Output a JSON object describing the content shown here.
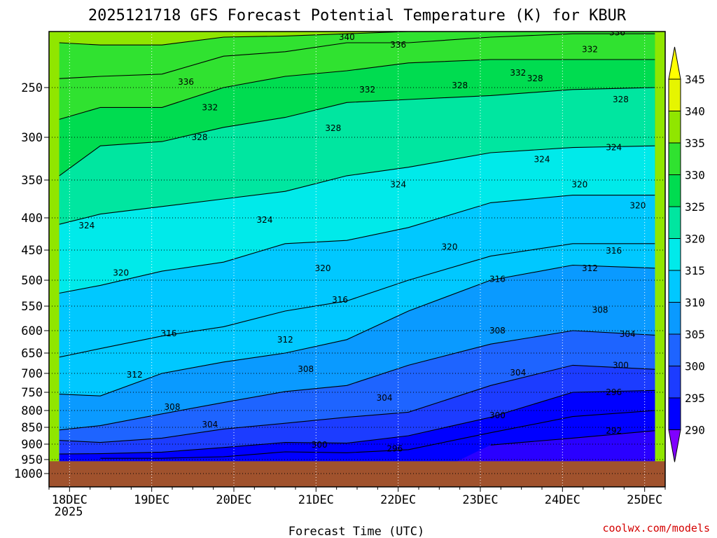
{
  "chart_data": {
    "type": "heatmap",
    "title": "2025121718 GFS Forecast Potential Temperature (K) for KBUR",
    "xlabel": "Forecast Time (UTC)",
    "ylabel": "",
    "y_ticks": [
      "250",
      "300",
      "350",
      "400",
      "450",
      "500",
      "550",
      "600",
      "650",
      "700",
      "750",
      "800",
      "850",
      "900",
      "950",
      "1000"
    ],
    "y_tick_values": [
      250,
      300,
      350,
      400,
      450,
      500,
      550,
      600,
      650,
      700,
      750,
      800,
      850,
      900,
      950,
      1000
    ],
    "ylim": [
      1000,
      200
    ],
    "x_ticks": [
      "18DEC",
      "19DEC",
      "20DEC",
      "21DEC",
      "22DEC",
      "23DEC",
      "24DEC",
      "25DEC"
    ],
    "x_tick_values": [
      0,
      24,
      48,
      72,
      96,
      120,
      144,
      168
    ],
    "x_year_label": "2025",
    "xlim": [
      -6,
      174
    ],
    "grid": true,
    "colorbar": {
      "levels": [
        290,
        295,
        300,
        305,
        310,
        315,
        320,
        325,
        330,
        335,
        340,
        345
      ],
      "labels": [
        "290",
        "295",
        "300",
        "305",
        "310",
        "315",
        "320",
        "325",
        "330",
        "335",
        "340",
        "345"
      ],
      "colors": [
        "#8000ff",
        "#2a00ff",
        "#0000ff",
        "#1c3cff",
        "#1e64ff",
        "#0a9aff",
        "#00c8ff",
        "#00eaea",
        "#00e6a0",
        "#00dc50",
        "#30e230",
        "#90e600",
        "#e6f500",
        "#ffff00"
      ]
    },
    "surface_pressure": 956,
    "surface_color": "#a0522d",
    "series": [
      {
        "level": 292,
        "values": [
          null,
          null,
          null,
          null,
          null,
          null,
          null,
          903,
          882,
          860
        ]
      },
      {
        "level": 296,
        "values": [
          null,
          946,
          946,
          941,
          925,
          928,
          918,
          866,
          818,
          800
        ]
      },
      {
        "level": 300,
        "values": [
          932,
          931,
          926,
          911,
          895,
          897,
          875,
          820,
          750,
          745
        ]
      },
      {
        "level": 304,
        "values": [
          889,
          895,
          882,
          855,
          838,
          820,
          805,
          732,
          680,
          690
        ]
      },
      {
        "level": 308,
        "values": [
          858,
          845,
          810,
          778,
          748,
          732,
          680,
          630,
          600,
          610
        ]
      },
      {
        "level": 312,
        "values": [
          755,
          760,
          700,
          672,
          650,
          620,
          560,
          500,
          475,
          480
        ]
      },
      {
        "level": 316,
        "values": [
          660,
          640,
          612,
          592,
          560,
          540,
          500,
          460,
          440,
          440
        ]
      },
      {
        "level": 320,
        "values": [
          525,
          510,
          485,
          470,
          440,
          435,
          415,
          380,
          370,
          370
        ]
      },
      {
        "level": 324,
        "values": [
          410,
          395,
          385,
          375,
          365,
          345,
          335,
          318,
          312,
          310
        ]
      },
      {
        "level": 328,
        "values": [
          345,
          310,
          305,
          290,
          280,
          265,
          262,
          258,
          252,
          250
        ]
      },
      {
        "level": 332,
        "values": [
          282,
          270,
          270,
          250,
          240,
          235,
          228,
          225,
          225,
          225
        ]
      },
      {
        "level": 336,
        "values": [
          242,
          240,
          238,
          222,
          218,
          210,
          210,
          205,
          202,
          202
        ]
      },
      {
        "level": 340,
        "values": [
          210,
          212,
          212,
          205,
          204,
          202,
          200,
          200,
          200,
          200
        ]
      }
    ],
    "series_x": [
      -3,
      9,
      27,
      45,
      63,
      81,
      99,
      123,
      147,
      171
    ],
    "contour_labels": [
      {
        "text": "340",
        "x": 81,
        "y": 205
      },
      {
        "text": "336",
        "x": 96,
        "y": 212
      },
      {
        "text": "336",
        "x": 34,
        "y": 245
      },
      {
        "text": "336",
        "x": 160,
        "y": 201
      },
      {
        "text": "332",
        "x": 41,
        "y": 270
      },
      {
        "text": "332",
        "x": 87,
        "y": 252
      },
      {
        "text": "332",
        "x": 131,
        "y": 237
      },
      {
        "text": "332",
        "x": 152,
        "y": 216
      },
      {
        "text": "328",
        "x": 38,
        "y": 300
      },
      {
        "text": "328",
        "x": 77,
        "y": 291
      },
      {
        "text": "328",
        "x": 114,
        "y": 248
      },
      {
        "text": "328",
        "x": 136,
        "y": 242
      },
      {
        "text": "328",
        "x": 161,
        "y": 262
      },
      {
        "text": "324",
        "x": 5,
        "y": 412
      },
      {
        "text": "324",
        "x": 57,
        "y": 403
      },
      {
        "text": "324",
        "x": 96,
        "y": 356
      },
      {
        "text": "324",
        "x": 138,
        "y": 326
      },
      {
        "text": "324",
        "x": 159,
        "y": 312
      },
      {
        "text": "320",
        "x": 15,
        "y": 488
      },
      {
        "text": "320",
        "x": 74,
        "y": 480
      },
      {
        "text": "320",
        "x": 111,
        "y": 445
      },
      {
        "text": "320",
        "x": 149,
        "y": 356
      },
      {
        "text": "320",
        "x": 166,
        "y": 384
      },
      {
        "text": "316",
        "x": 29,
        "y": 606
      },
      {
        "text": "316",
        "x": 79,
        "y": 538
      },
      {
        "text": "316",
        "x": 125,
        "y": 498
      },
      {
        "text": "316",
        "x": 159,
        "y": 451
      },
      {
        "text": "312",
        "x": 19,
        "y": 704
      },
      {
        "text": "312",
        "x": 63,
        "y": 620
      },
      {
        "text": "312",
        "x": 152,
        "y": 480
      },
      {
        "text": "308",
        "x": 30,
        "y": 790
      },
      {
        "text": "308",
        "x": 69,
        "y": 690
      },
      {
        "text": "308",
        "x": 125,
        "y": 600
      },
      {
        "text": "308",
        "x": 155,
        "y": 558
      },
      {
        "text": "304",
        "x": 41,
        "y": 842
      },
      {
        "text": "304",
        "x": 92,
        "y": 765
      },
      {
        "text": "304",
        "x": 131,
        "y": 698
      },
      {
        "text": "304",
        "x": 163,
        "y": 608
      },
      {
        "text": "300",
        "x": 73,
        "y": 902
      },
      {
        "text": "300",
        "x": 125,
        "y": 815
      },
      {
        "text": "300",
        "x": 161,
        "y": 680
      },
      {
        "text": "296",
        "x": 95,
        "y": 915
      },
      {
        "text": "296",
        "x": 159,
        "y": 750
      },
      {
        "text": "292",
        "x": 159,
        "y": 860
      }
    ]
  },
  "credit": "coolwx.com/models"
}
